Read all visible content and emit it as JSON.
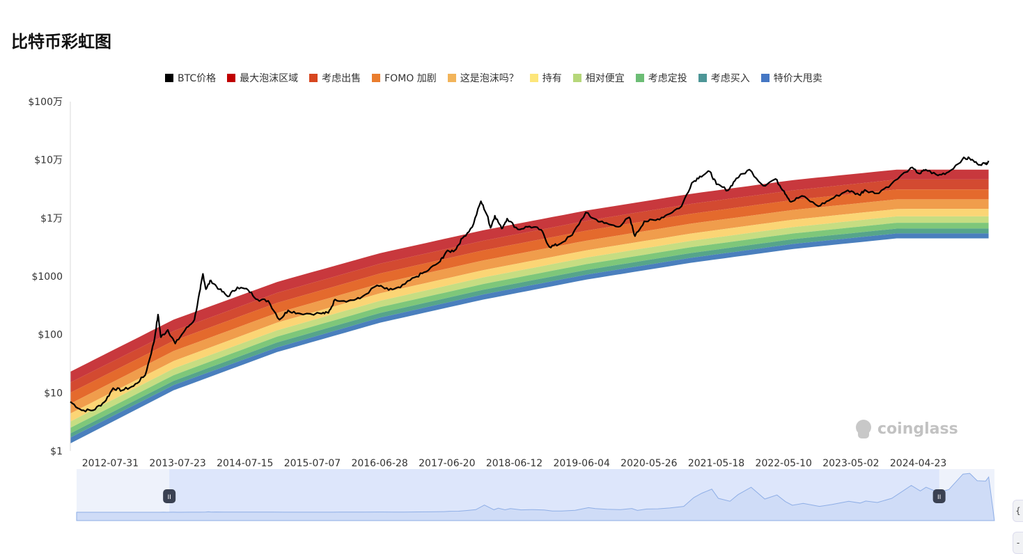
{
  "page": {
    "title": "比特币彩虹图"
  },
  "watermark": "coinglass",
  "chart_data": {
    "type": "area",
    "title": "",
    "xlabel": "",
    "ylabel": "",
    "y_scale": "log",
    "ylim": [
      1,
      1000000
    ],
    "xlim": [
      "2012-01-01",
      "2025-06-01"
    ],
    "y_ticks": [
      {
        "value": 1,
        "label": "$1"
      },
      {
        "value": 10,
        "label": "$10"
      },
      {
        "value": 100,
        "label": "$100"
      },
      {
        "value": 1000,
        "label": "$1000"
      },
      {
        "value": 10000,
        "label": "$1万"
      },
      {
        "value": 100000,
        "label": "$10万"
      },
      {
        "value": 1000000,
        "label": "$100万"
      }
    ],
    "x_ticks": [
      "2012-07-31",
      "2013-07-23",
      "2014-07-15",
      "2015-07-07",
      "2016-06-28",
      "2017-06-20",
      "2018-06-12",
      "2019-06-04",
      "2020-05-26",
      "2021-05-18",
      "2022-05-10",
      "2023-05-02",
      "2024-04-23"
    ],
    "legend_position": "top",
    "legend": [
      {
        "name": "BTC价格",
        "color": "#000000"
      },
      {
        "name": "最大泡沫区域",
        "color": "#c00000"
      },
      {
        "name": "考虑出售",
        "color": "#d7461f"
      },
      {
        "name": "FOMO 加剧",
        "color": "#ea7d2e"
      },
      {
        "name": "这是泡沫吗？",
        "color": "#f2b45a"
      },
      {
        "name": "持有",
        "color": "#fde67a"
      },
      {
        "name": "相对便宜",
        "color": "#b6d77a"
      },
      {
        "name": "考虑定投",
        "color": "#6cbd75"
      },
      {
        "name": "考虑买入",
        "color": "#4d9697"
      },
      {
        "name": "特价大甩卖",
        "color": "#4577c4"
      }
    ],
    "band_fills": [
      "#c8383d",
      "#d34a31",
      "#e46a2d",
      "#f09d4c",
      "#fbd575",
      "#c6dd82",
      "#7ec77a",
      "#56a58a",
      "#4a7fbd"
    ],
    "band_boundaries": [
      {
        "x": "2012-01-01",
        "y": [
          23,
          15,
          10,
          6.5,
          4.4,
          3.2,
          2.5,
          2.0,
          1.7,
          1.35
        ]
      },
      {
        "x": "2013-07-01",
        "y": [
          180,
          115,
          78,
          52,
          35,
          26,
          20,
          16,
          13.5,
          11
        ]
      },
      {
        "x": "2015-01-01",
        "y": [
          800,
          520,
          350,
          235,
          160,
          118,
          92,
          73,
          60,
          50
        ]
      },
      {
        "x": "2016-07-01",
        "y": [
          2500,
          1650,
          1120,
          750,
          510,
          380,
          295,
          235,
          195,
          160
        ]
      },
      {
        "x": "2018-01-01",
        "y": [
          6200,
          4100,
          2800,
          1880,
          1280,
          960,
          740,
          590,
          490,
          400
        ]
      },
      {
        "x": "2019-07-01",
        "y": [
          13500,
          9000,
          6100,
          4100,
          2800,
          2100,
          1620,
          1290,
          1070,
          880
        ]
      },
      {
        "x": "2021-01-01",
        "y": [
          26000,
          17500,
          11800,
          8000,
          5400,
          4050,
          3150,
          2500,
          2070,
          1700
        ]
      },
      {
        "x": "2022-07-01",
        "y": [
          45000,
          30000,
          20500,
          13800,
          9400,
          7000,
          5450,
          4350,
          3600,
          2950
        ]
      },
      {
        "x": "2024-01-01",
        "y": [
          68000,
          46000,
          31000,
          21000,
          14300,
          10700,
          8300,
          6600,
          5450,
          4480
        ]
      },
      {
        "x": "2025-05-01",
        "y": [
          68000,
          46000,
          31000,
          21000,
          14300,
          10700,
          8300,
          6600,
          5450,
          4480
        ]
      }
    ],
    "series": [
      {
        "name": "BTC价格",
        "color": "#000000",
        "points": [
          [
            "2012-01-01",
            7
          ],
          [
            "2012-03-01",
            5
          ],
          [
            "2012-05-01",
            5
          ],
          [
            "2012-07-01",
            7
          ],
          [
            "2012-08-15",
            12
          ],
          [
            "2012-10-01",
            11
          ],
          [
            "2012-12-01",
            13
          ],
          [
            "2013-02-01",
            20
          ],
          [
            "2013-03-20",
            75
          ],
          [
            "2013-04-10",
            220
          ],
          [
            "2013-04-25",
            90
          ],
          [
            "2013-06-01",
            120
          ],
          [
            "2013-07-10",
            70
          ],
          [
            "2013-09-01",
            120
          ],
          [
            "2013-10-20",
            180
          ],
          [
            "2013-11-20",
            600
          ],
          [
            "2013-12-04",
            1100
          ],
          [
            "2013-12-20",
            600
          ],
          [
            "2014-01-15",
            850
          ],
          [
            "2014-03-01",
            600
          ],
          [
            "2014-04-15",
            450
          ],
          [
            "2014-06-05",
            650
          ],
          [
            "2014-08-01",
            580
          ],
          [
            "2014-09-20",
            400
          ],
          [
            "2014-11-15",
            380
          ],
          [
            "2015-01-14",
            180
          ],
          [
            "2015-03-01",
            260
          ],
          [
            "2015-05-01",
            230
          ],
          [
            "2015-08-20",
            230
          ],
          [
            "2015-09-30",
            235
          ],
          [
            "2015-11-05",
            400
          ],
          [
            "2016-01-15",
            380
          ],
          [
            "2016-03-15",
            415
          ],
          [
            "2016-06-15",
            700
          ],
          [
            "2016-08-15",
            580
          ],
          [
            "2016-10-15",
            640
          ],
          [
            "2016-12-31",
            960
          ],
          [
            "2017-03-01",
            1200
          ],
          [
            "2017-05-15",
            1800
          ],
          [
            "2017-06-15",
            2600
          ],
          [
            "2017-08-01",
            2800
          ],
          [
            "2017-09-10",
            4500
          ],
          [
            "2017-11-01",
            7000
          ],
          [
            "2017-12-17",
            19500
          ],
          [
            "2018-01-20",
            11000
          ],
          [
            "2018-02-06",
            6800
          ],
          [
            "2018-03-01",
            11000
          ],
          [
            "2018-04-06",
            6600
          ],
          [
            "2018-05-05",
            9800
          ],
          [
            "2018-07-01",
            6400
          ],
          [
            "2018-09-01",
            7200
          ],
          [
            "2018-11-01",
            6300
          ],
          [
            "2018-12-15",
            3200
          ],
          [
            "2019-02-01",
            3500
          ],
          [
            "2019-04-15",
            5100
          ],
          [
            "2019-06-26",
            12500
          ],
          [
            "2019-08-01",
            10000
          ],
          [
            "2019-10-01",
            8200
          ],
          [
            "2019-12-15",
            7100
          ],
          [
            "2020-02-12",
            10300
          ],
          [
            "2020-03-13",
            4900
          ],
          [
            "2020-05-01",
            8800
          ],
          [
            "2020-07-01",
            9200
          ],
          [
            "2020-09-01",
            11500
          ],
          [
            "2020-11-15",
            16000
          ],
          [
            "2021-01-08",
            40000
          ],
          [
            "2021-02-20",
            52000
          ],
          [
            "2021-04-14",
            63000
          ],
          [
            "2021-05-19",
            38000
          ],
          [
            "2021-07-20",
            30000
          ],
          [
            "2021-09-01",
            48000
          ],
          [
            "2021-11-10",
            68000
          ],
          [
            "2022-01-22",
            36000
          ],
          [
            "2022-03-28",
            47000
          ],
          [
            "2022-05-12",
            29000
          ],
          [
            "2022-06-18",
            19000
          ],
          [
            "2022-08-15",
            24000
          ],
          [
            "2022-11-10",
            16000
          ],
          [
            "2023-01-15",
            21000
          ],
          [
            "2023-04-15",
            30000
          ],
          [
            "2023-06-15",
            25000
          ],
          [
            "2023-07-15",
            30500
          ],
          [
            "2023-09-15",
            26500
          ],
          [
            "2023-12-01",
            38000
          ],
          [
            "2024-03-14",
            73000
          ],
          [
            "2024-05-01",
            58000
          ],
          [
            "2024-06-01",
            68000
          ],
          [
            "2024-08-05",
            54000
          ],
          [
            "2024-10-01",
            62000
          ],
          [
            "2024-12-15",
            104000
          ],
          [
            "2025-01-20",
            106000
          ],
          [
            "2025-03-01",
            86000
          ],
          [
            "2025-04-15",
            85000
          ],
          [
            "2025-05-01",
            96000
          ]
        ]
      }
    ]
  },
  "navigator": {
    "range_start": "2013-05-10",
    "range_end": "2024-08-10",
    "left_handle_label": "II",
    "right_handle_label": "II"
  },
  "side_buttons": [
    "{",
    "-"
  ]
}
